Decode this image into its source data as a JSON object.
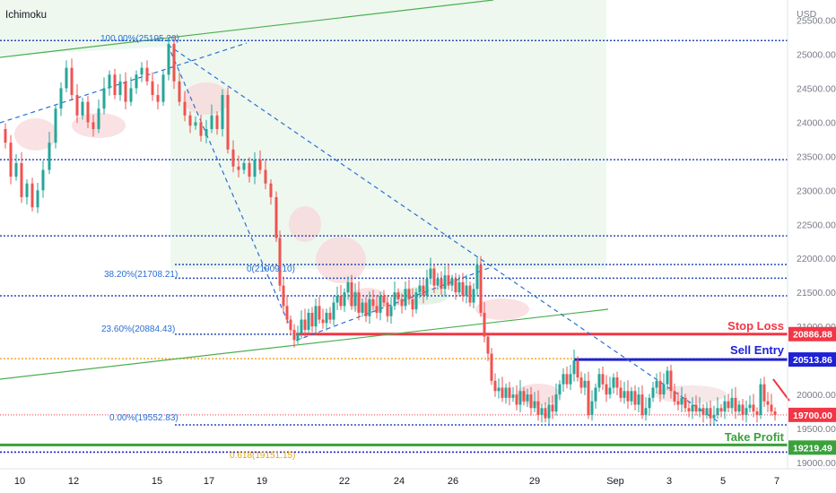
{
  "chart_data": {
    "type": "candlestick",
    "title": "Ichimoku",
    "currency": "USD",
    "ylim": [
      19000,
      25700
    ],
    "y_ticks": [
      19000,
      19500,
      20000,
      20500,
      21000,
      21500,
      22000,
      22500,
      23000,
      23500,
      24000,
      24500,
      25000,
      25500
    ],
    "y_tick_labels": [
      "19000.00",
      "19500.00",
      "20000.00",
      "20500.00",
      "21000.00",
      "21500.00",
      "22000.00",
      "22500.00",
      "23000.00",
      "23500.00",
      "24000.00",
      "24500.00",
      "25000.00",
      "25500.00"
    ],
    "x_tick_labels": [
      "10",
      "12",
      "15",
      "17",
      "19",
      "22",
      "24",
      "26",
      "29",
      "Sep",
      "3",
      "5",
      "7"
    ],
    "horizontal_levels": [
      25200,
      23450,
      22330,
      21450
    ],
    "fib_labels": [
      {
        "label": "100.00%(25195.20)",
        "value": 25195.2
      },
      {
        "label": "38.20%(21708.21)",
        "value": 21708.21
      },
      {
        "label": "0(21909.10)",
        "value": 21909.1
      },
      {
        "label": "23.60%(20884.43)",
        "value": 20884.43
      },
      {
        "label": "0.00%(19552.83)",
        "value": 19552.83
      },
      {
        "label": "0.618(19151.15)",
        "value": 19151.15
      }
    ],
    "annotations": {
      "stop_loss": {
        "label": "Stop Loss",
        "value": 20886.88,
        "value_label": "20886.88",
        "color": "#f23645"
      },
      "sell_entry": {
        "label": "Sell Entry",
        "value": 20513.86,
        "value_label": "20513.86",
        "color": "#1e22d6"
      },
      "take_profit": {
        "label": "Take Profit",
        "value": 19219.49,
        "value_label": "19219.49",
        "color": "#3aa13c"
      },
      "last_price": {
        "value": 19700.0,
        "value_label": "19700.00",
        "color": "#f23645"
      }
    },
    "price_path": [
      [
        0,
        23900
      ],
      [
        6,
        23700
      ],
      [
        12,
        23200
      ],
      [
        18,
        23400
      ],
      [
        24,
        22900
      ],
      [
        30,
        23100
      ],
      [
        36,
        22750
      ],
      [
        42,
        23000
      ],
      [
        48,
        23300
      ],
      [
        55,
        23700
      ],
      [
        62,
        24200
      ],
      [
        68,
        24500
      ],
      [
        74,
        24800
      ],
      [
        80,
        24400
      ],
      [
        86,
        24100
      ],
      [
        92,
        24300
      ],
      [
        98,
        24000
      ],
      [
        104,
        23900
      ],
      [
        110,
        24200
      ],
      [
        116,
        24500
      ],
      [
        122,
        24700
      ],
      [
        128,
        24400
      ],
      [
        134,
        24600
      ],
      [
        140,
        24300
      ],
      [
        146,
        24500
      ],
      [
        152,
        24700
      ],
      [
        158,
        24800
      ],
      [
        164,
        24600
      ],
      [
        170,
        24400
      ],
      [
        176,
        24300
      ],
      [
        182,
        24700
      ],
      [
        188,
        25150
      ],
      [
        194,
        24600
      ],
      [
        200,
        24300
      ],
      [
        206,
        24100
      ],
      [
        212,
        23950
      ],
      [
        218,
        24000
      ],
      [
        224,
        23800
      ],
      [
        230,
        23900
      ],
      [
        236,
        24100
      ],
      [
        242,
        23900
      ],
      [
        248,
        24400
      ],
      [
        254,
        23600
      ],
      [
        260,
        23350
      ],
      [
        266,
        23300
      ],
      [
        272,
        23400
      ],
      [
        278,
        23200
      ],
      [
        284,
        23450
      ],
      [
        290,
        23300
      ],
      [
        296,
        23100
      ],
      [
        302,
        22900
      ],
      [
        308,
        22300
      ],
      [
        312,
        21600
      ],
      [
        316,
        21300
      ],
      [
        320,
        21100
      ],
      [
        324,
        20950
      ],
      [
        328,
        20800
      ],
      [
        332,
        20900
      ],
      [
        336,
        21100
      ],
      [
        340,
        20950
      ],
      [
        344,
        21200
      ],
      [
        348,
        21000
      ],
      [
        352,
        21300
      ],
      [
        356,
        21100
      ],
      [
        360,
        21050
      ],
      [
        364,
        21200
      ],
      [
        368,
        21100
      ],
      [
        372,
        21350
      ],
      [
        376,
        21450
      ],
      [
        380,
        21300
      ],
      [
        384,
        21500
      ],
      [
        388,
        21650
      ],
      [
        392,
        21300
      ],
      [
        396,
        21500
      ],
      [
        400,
        21200
      ],
      [
        404,
        21350
      ],
      [
        408,
        21150
      ],
      [
        412,
        21400
      ],
      [
        416,
        21300
      ],
      [
        420,
        21200
      ],
      [
        424,
        21450
      ],
      [
        428,
        21350
      ],
      [
        432,
        21150
      ],
      [
        436,
        21300
      ],
      [
        440,
        21500
      ],
      [
        444,
        21400
      ],
      [
        448,
        21300
      ],
      [
        452,
        21550
      ],
      [
        456,
        21400
      ],
      [
        460,
        21250
      ],
      [
        464,
        21500
      ],
      [
        468,
        21600
      ],
      [
        472,
        21450
      ],
      [
        476,
        21700
      ],
      [
        480,
        21850
      ],
      [
        484,
        21600
      ],
      [
        488,
        21700
      ],
      [
        492,
        21550
      ],
      [
        496,
        21750
      ],
      [
        500,
        21600
      ],
      [
        504,
        21700
      ],
      [
        508,
        21500
      ],
      [
        512,
        21650
      ],
      [
        516,
        21450
      ],
      [
        520,
        21600
      ],
      [
        524,
        21350
      ],
      [
        528,
        21550
      ],
      [
        532,
        21900
      ],
      [
        536,
        21200
      ],
      [
        540,
        20850
      ],
      [
        544,
        20600
      ],
      [
        548,
        20200
      ],
      [
        552,
        20050
      ],
      [
        556,
        20100
      ],
      [
        560,
        19950
      ],
      [
        564,
        20100
      ],
      [
        568,
        19950
      ],
      [
        572,
        20000
      ],
      [
        576,
        19850
      ],
      [
        580,
        20050
      ],
      [
        584,
        19900
      ],
      [
        588,
        20000
      ],
      [
        592,
        19800
      ],
      [
        596,
        19900
      ],
      [
        600,
        19700
      ],
      [
        604,
        19800
      ],
      [
        608,
        19650
      ],
      [
        612,
        19850
      ],
      [
        616,
        19750
      ],
      [
        620,
        20000
      ],
      [
        624,
        20150
      ],
      [
        628,
        20300
      ],
      [
        632,
        20150
      ],
      [
        636,
        20300
      ],
      [
        640,
        20500
      ],
      [
        644,
        20250
      ],
      [
        648,
        20100
      ],
      [
        652,
        20200
      ],
      [
        656,
        19700
      ],
      [
        660,
        19900
      ],
      [
        664,
        20100
      ],
      [
        668,
        20300
      ],
      [
        672,
        20150
      ],
      [
        676,
        20000
      ],
      [
        680,
        20100
      ],
      [
        684,
        20250
      ],
      [
        688,
        20100
      ],
      [
        692,
        19950
      ],
      [
        696,
        20050
      ],
      [
        700,
        19900
      ],
      [
        704,
        20050
      ],
      [
        708,
        19850
      ],
      [
        712,
        20000
      ],
      [
        716,
        19700
      ],
      [
        720,
        19800
      ],
      [
        724,
        19950
      ],
      [
        728,
        20100
      ],
      [
        732,
        20200
      ],
      [
        736,
        20000
      ],
      [
        740,
        20150
      ],
      [
        744,
        20350
      ],
      [
        748,
        20050
      ],
      [
        752,
        19900
      ],
      [
        756,
        19850
      ],
      [
        760,
        19950
      ],
      [
        764,
        19800
      ],
      [
        768,
        19750
      ],
      [
        772,
        19850
      ],
      [
        776,
        19750
      ],
      [
        780,
        19800
      ],
      [
        784,
        19700
      ],
      [
        788,
        19800
      ],
      [
        792,
        19650
      ],
      [
        796,
        19700
      ],
      [
        800,
        19800
      ],
      [
        804,
        19750
      ],
      [
        808,
        19900
      ],
      [
        812,
        19800
      ],
      [
        816,
        19950
      ],
      [
        820,
        19750
      ],
      [
        824,
        19850
      ],
      [
        828,
        19700
      ],
      [
        832,
        19800
      ],
      [
        836,
        19850
      ],
      [
        840,
        19750
      ],
      [
        844,
        19700
      ],
      [
        848,
        20150
      ],
      [
        852,
        19900
      ],
      [
        856,
        19850
      ],
      [
        860,
        19750
      ],
      [
        864,
        19700
      ]
    ]
  }
}
